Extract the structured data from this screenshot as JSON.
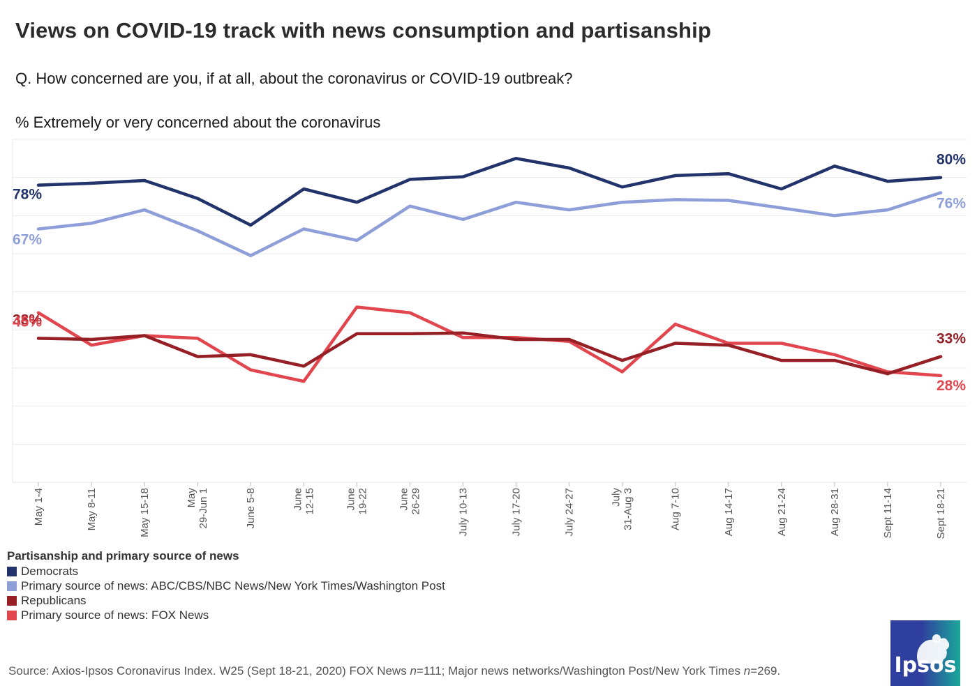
{
  "title": "Views on COVID-19 track with news consumption and partisanship",
  "question": "Q. How concerned are you, if at all, about the coronavirus or COVID-19 outbreak?",
  "subtitle": "% Extremely or very concerned about the coronavirus",
  "chart_data": {
    "type": "line",
    "title": "Views on COVID-19 track with news consumption and partisanship",
    "ylabel": "% Extremely or very concerned about the coronavirus",
    "xlabel": "",
    "ylim": [
      0,
      90
    ],
    "grid": true,
    "categories": [
      [
        "May 1-4"
      ],
      [
        "May 8-11"
      ],
      [
        "May 15-18"
      ],
      [
        "May",
        "29-Jun 1"
      ],
      [
        "June 5-8"
      ],
      [
        "June",
        "12-15"
      ],
      [
        "June",
        "19-22"
      ],
      [
        "June",
        "26-29"
      ],
      [
        "July 10-13"
      ],
      [
        "July 17-20"
      ],
      [
        "July 24-27"
      ],
      [
        "July",
        "31-Aug 3"
      ],
      [
        "Aug 7-10"
      ],
      [
        "Aug 14-17"
      ],
      [
        "Aug 21-24"
      ],
      [
        "Aug 28-31"
      ],
      [
        "Sept 11-14"
      ],
      [
        "Sept 18-21"
      ]
    ],
    "series": [
      {
        "name": "Democrats",
        "color": "#22336b",
        "values": [
          78,
          78.5,
          79.2,
          74.5,
          67.5,
          77,
          73.5,
          79.5,
          80.2,
          85,
          82.5,
          77.5,
          80.5,
          81,
          77,
          83,
          79,
          80
        ],
        "start_label": "78%",
        "end_label": "80%"
      },
      {
        "name": "Primary source of news: ABC/CBS/NBC News/New York Times/Washington Post",
        "color": "#8e9ed8",
        "values": [
          66.5,
          68,
          71.5,
          66,
          59.5,
          66.5,
          63.5,
          72.5,
          69,
          73.5,
          71.5,
          73.5,
          74.2,
          74,
          72,
          70,
          71.5,
          76
        ],
        "start_label": "67%",
        "end_label": "76%"
      },
      {
        "name": "Republicans",
        "color": "#951f25",
        "values": [
          37.8,
          37.5,
          38.5,
          33,
          33.5,
          30.5,
          39,
          39,
          39.2,
          37.5,
          37.5,
          32,
          36.5,
          36,
          32,
          32,
          28.5,
          33
        ],
        "start_label": "38%",
        "end_label": "33%"
      },
      {
        "name": "Primary source of news: FOX News",
        "color": "#e1464f",
        "values": [
          44.5,
          36,
          38.5,
          37.8,
          29.5,
          26.5,
          46,
          44.5,
          38,
          38,
          37,
          29,
          41.5,
          36.5,
          36.5,
          33.5,
          29,
          28
        ],
        "start_label": "45%",
        "end_label": "28%"
      }
    ]
  },
  "legend": {
    "title": "Partisanship and primary source of news",
    "items": [
      {
        "label": "Democrats",
        "color": "#22336b"
      },
      {
        "label": "Primary source of news: ABC/CBS/NBC News/New York Times/Washington Post",
        "color": "#8e9ed8"
      },
      {
        "label": "Republicans",
        "color": "#951f25"
      },
      {
        "label": "Primary source of news: FOX News",
        "color": "#e1464f"
      }
    ]
  },
  "footnote": {
    "part1": "Source: Axios-Ipsos Coronavirus Index. W25 (Sept 18-21, 2020) FOX News ",
    "n_symbol_1": "n",
    "part2": "=111; Major news networks/Washington Post/New York Times ",
    "n_symbol_2": "n",
    "part3": "=269."
  },
  "logo": {
    "text": "Ipsos"
  }
}
